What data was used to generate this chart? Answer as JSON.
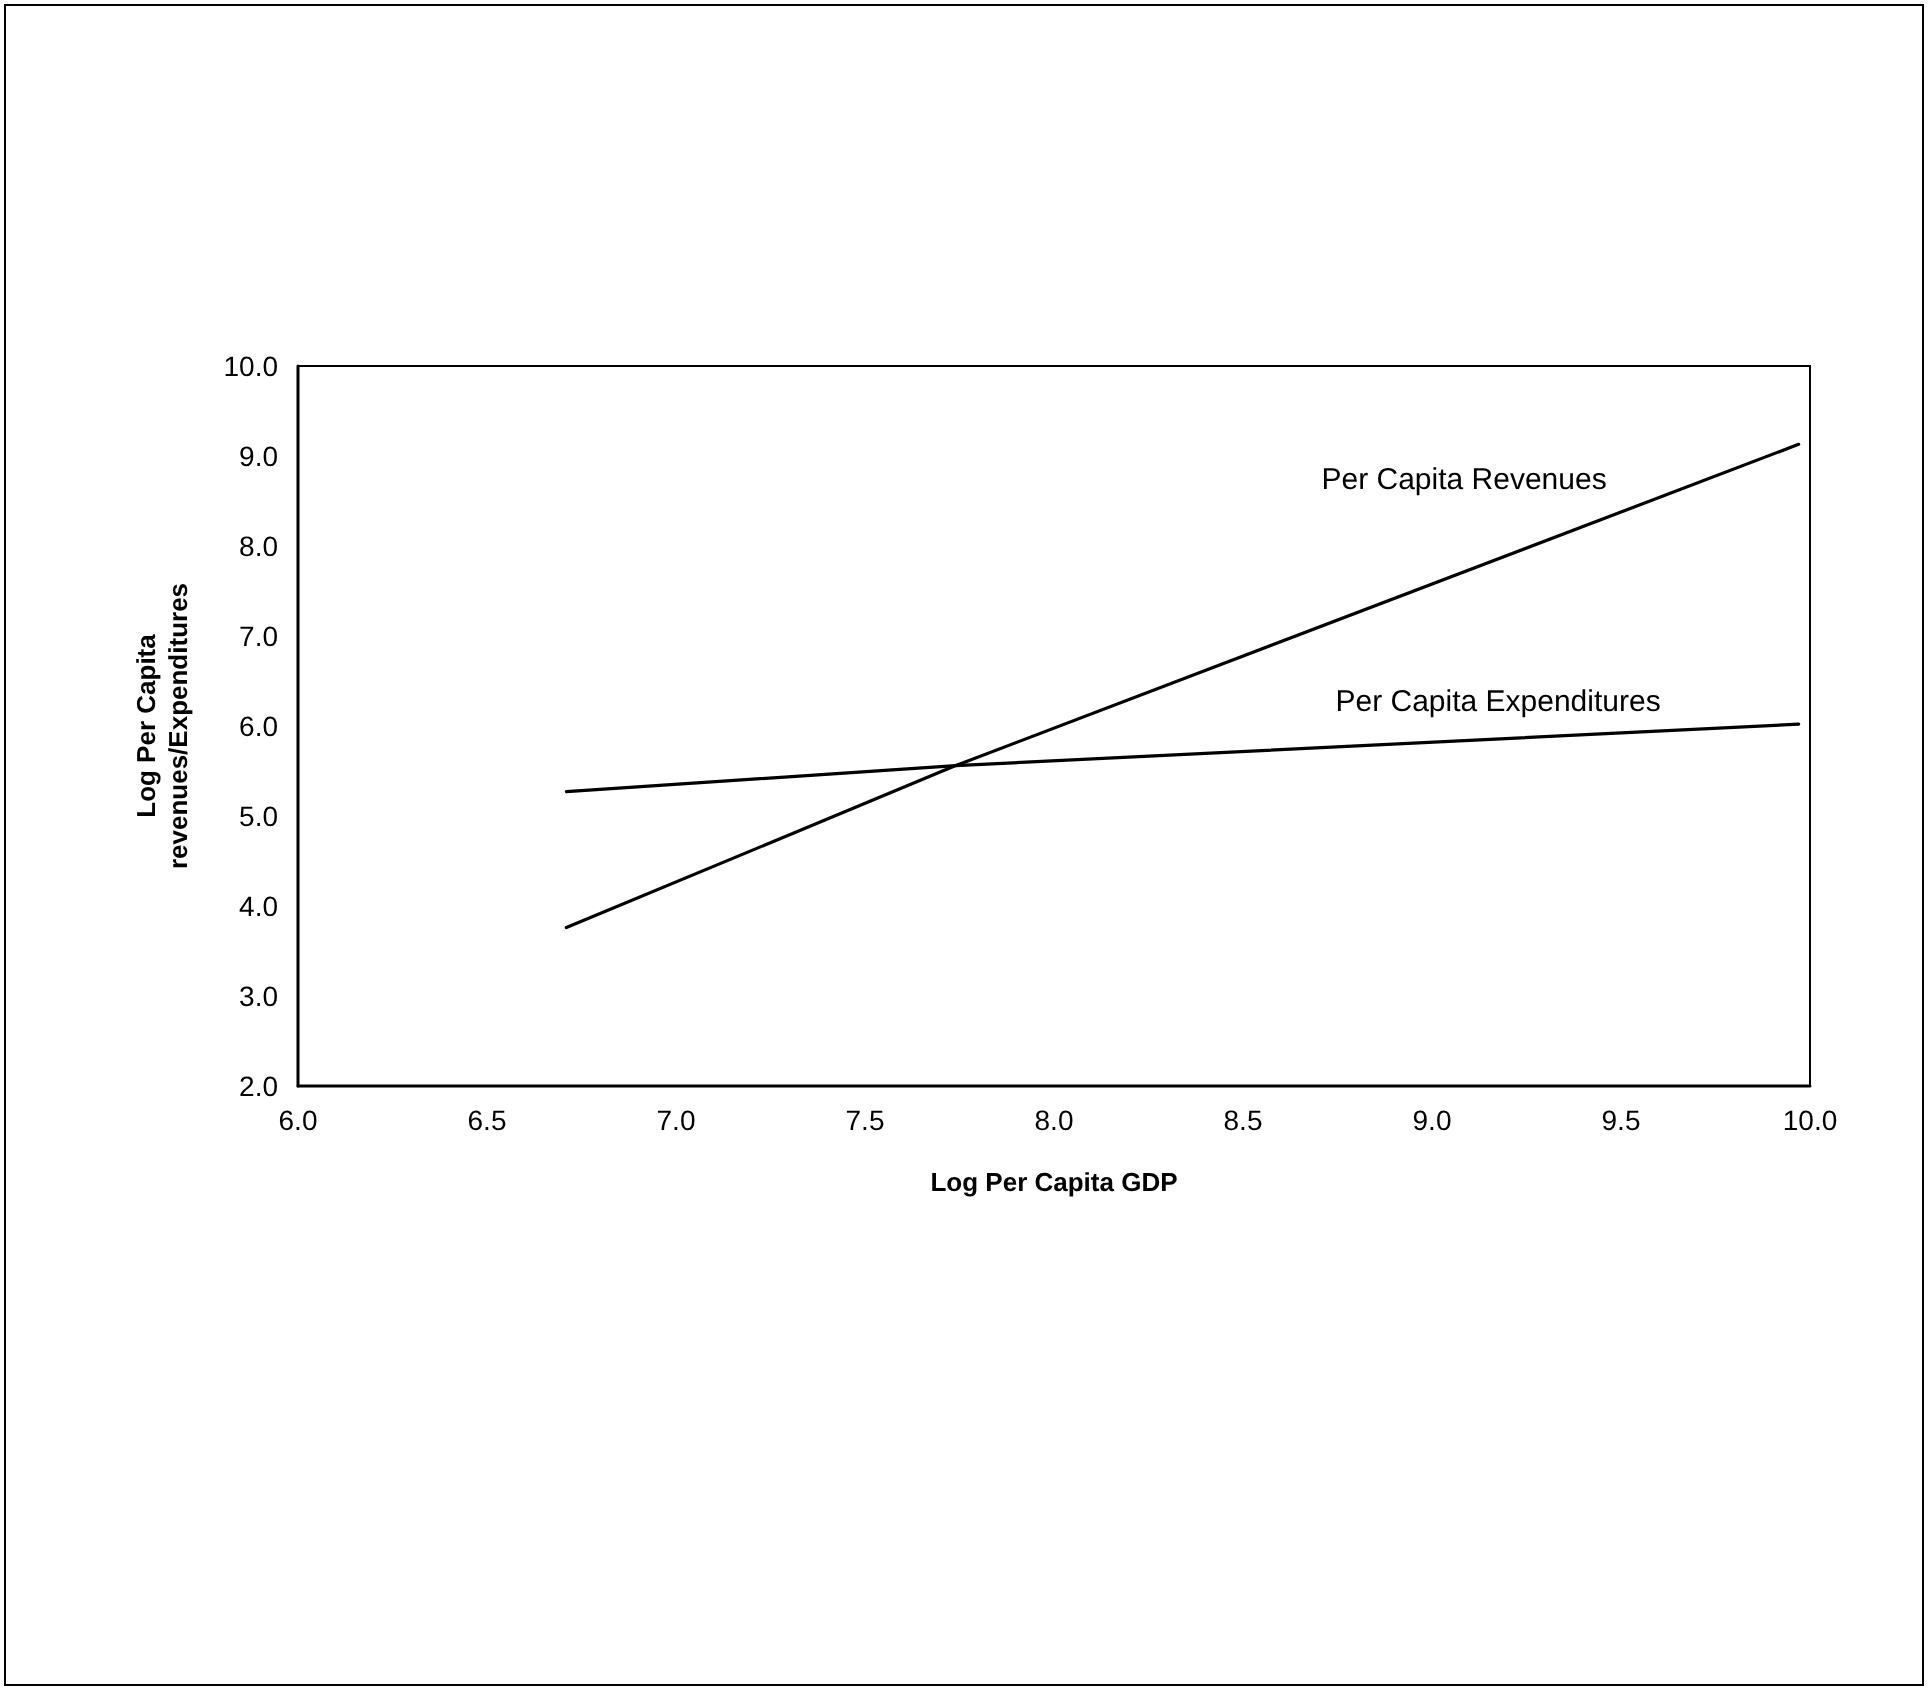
{
  "chart_data": {
    "type": "line",
    "xlabel": "Log Per Capita GDP",
    "ylabel": "Log Per Capita\nrevenues/Expenditures",
    "series": [
      {
        "name": "Per Capita Revenues",
        "color": "#000000",
        "x": [
          6.71,
          7.74,
          9.97
        ],
        "values": [
          3.76,
          5.56,
          9.13
        ]
      },
      {
        "name": "Per Capita Expenditures",
        "color": "#000000",
        "x": [
          6.71,
          7.74,
          9.97
        ],
        "values": [
          5.27,
          5.56,
          6.02
        ]
      }
    ],
    "xlim": [
      6,
      10
    ],
    "xticks": [
      {
        "value": 6,
        "label": "6.0"
      },
      6.5,
      {
        "value": 7,
        "label": "7.0"
      },
      7.5,
      {
        "value": 8,
        "label": "8.0"
      },
      8.5,
      {
        "value": 9,
        "label": "9.0"
      },
      9.5,
      {
        "value": 10,
        "label": "10.0"
      }
    ],
    "ylim": [
      2,
      10
    ],
    "yticks": [
      {
        "value": 2,
        "label": "2.0"
      },
      {
        "value": 3,
        "label": "3.0"
      },
      {
        "value": 4,
        "label": "4.0"
      },
      {
        "value": 5,
        "label": "5.0"
      },
      {
        "value": 6,
        "label": "6.0"
      },
      {
        "value": 7,
        "label": "7.0"
      },
      {
        "value": 8,
        "label": "8.0"
      },
      {
        "value": 9,
        "label": "9.0"
      },
      {
        "value": 10,
        "label": "10.0"
      }
    ],
    "grid": false,
    "legend": false,
    "marker": "none",
    "line_style": "solid"
  }
}
